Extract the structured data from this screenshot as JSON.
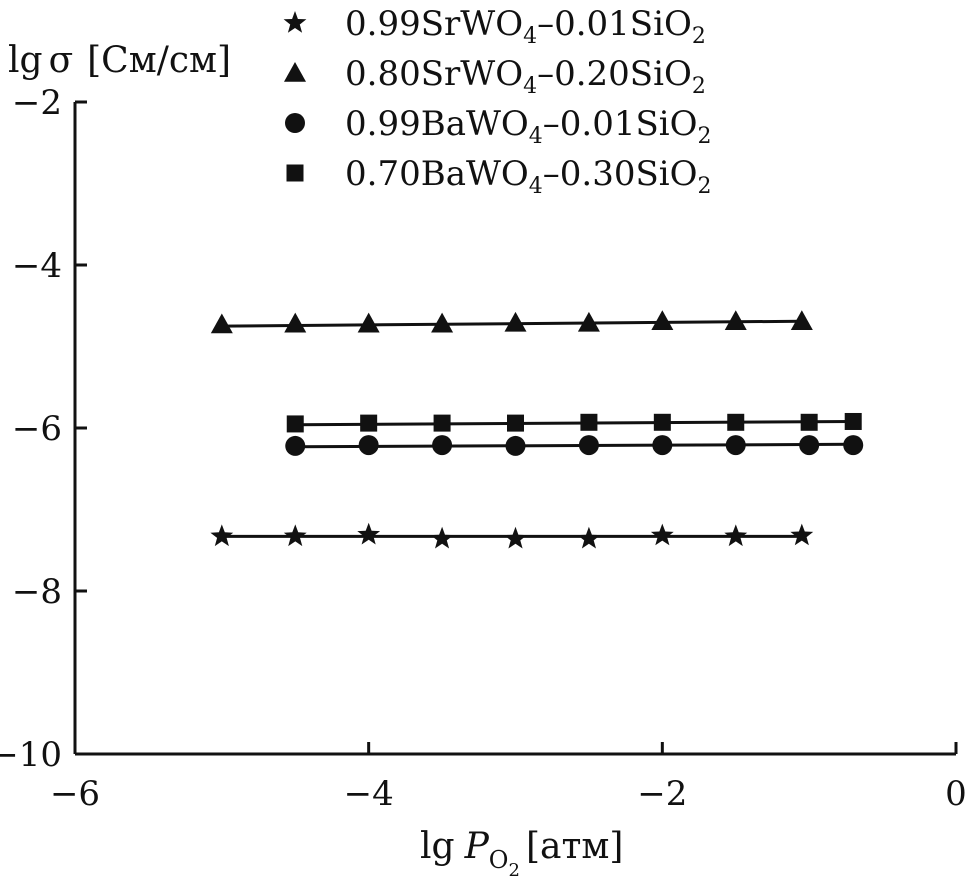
{
  "chart_data": {
    "type": "scatter",
    "title": "",
    "ylabel": {
      "prefix": "lg",
      "symbol": "σ",
      "unit": "[См/см]"
    },
    "xlabel": {
      "prefix": "lg",
      "symbol": "P",
      "subscript_main": "O",
      "subscript_index": "2",
      "unit": "[атм]"
    },
    "xlim": [
      -6,
      0
    ],
    "ylim": [
      -10,
      -2
    ],
    "xticks": [
      -6,
      -4,
      -2,
      0
    ],
    "yticks": [
      -2,
      -4,
      -6,
      -8,
      -10
    ],
    "xtick_labels": [
      "−6",
      "−4",
      "−2",
      "0"
    ],
    "ytick_labels": [
      "−2",
      "−4",
      "−6",
      "−8",
      "−10"
    ],
    "grid": false,
    "legend_position": "top",
    "series": [
      {
        "name": "0.99SrWO4–0.01SiO2",
        "label_parts": [
          "0.99SrWO",
          "4",
          "–0.01SiO",
          "2"
        ],
        "marker": "star",
        "x": [
          -5.0,
          -4.5,
          -4.0,
          -3.5,
          -3.0,
          -2.5,
          -2.0,
          -1.5,
          -1.05
        ],
        "y": [
          -7.33,
          -7.33,
          -7.31,
          -7.36,
          -7.36,
          -7.36,
          -7.32,
          -7.33,
          -7.32
        ],
        "fit": {
          "x": [
            -5.0,
            -1.05
          ],
          "y": [
            -7.33,
            -7.33
          ]
        }
      },
      {
        "name": "0.80SrWO4–0.20SiO2",
        "label_parts": [
          "0.80SrWO",
          "4",
          "–0.20SiO",
          "2"
        ],
        "marker": "triangle",
        "x": [
          -5.0,
          -4.5,
          -4.0,
          -3.5,
          -3.0,
          -2.5,
          -2.0,
          -1.5,
          -1.05
        ],
        "y": [
          -4.73,
          -4.72,
          -4.72,
          -4.72,
          -4.71,
          -4.71,
          -4.69,
          -4.69,
          -4.69
        ],
        "fit": {
          "x": [
            -5.0,
            -1.05
          ],
          "y": [
            -4.75,
            -4.69
          ]
        }
      },
      {
        "name": "0.99BaWO4–0.01SiO2",
        "label_parts": [
          "0.99BaWO",
          "4",
          "–0.01SiO",
          "2"
        ],
        "marker": "circle",
        "x": [
          -4.5,
          -4.0,
          -3.5,
          -3.0,
          -2.5,
          -2.0,
          -1.5,
          -1.0,
          -0.7
        ],
        "y": [
          -6.22,
          -6.21,
          -6.21,
          -6.22,
          -6.21,
          -6.21,
          -6.21,
          -6.21,
          -6.21
        ],
        "fit": {
          "x": [
            -4.5,
            -0.7
          ],
          "y": [
            -6.23,
            -6.2
          ]
        }
      },
      {
        "name": "0.70BaWO4–0.30SiO2",
        "label_parts": [
          "0.70BaWO",
          "4",
          "–0.30SiO",
          "2"
        ],
        "marker": "square",
        "x": [
          -4.5,
          -4.0,
          -3.5,
          -3.0,
          -2.5,
          -2.0,
          -1.5,
          -1.0,
          -0.7
        ],
        "y": [
          -5.95,
          -5.94,
          -5.94,
          -5.94,
          -5.93,
          -5.93,
          -5.93,
          -5.93,
          -5.92
        ],
        "fit": {
          "x": [
            -4.5,
            -0.7
          ],
          "y": [
            -5.96,
            -5.92
          ]
        }
      }
    ]
  }
}
